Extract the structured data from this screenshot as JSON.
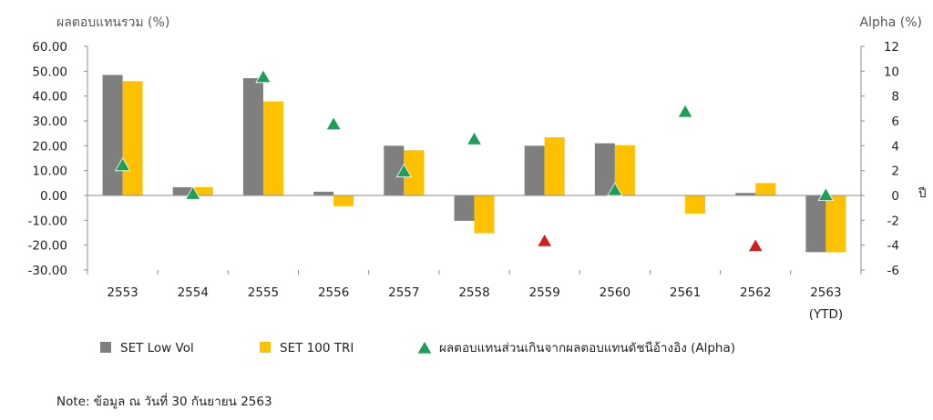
{
  "chart_data": {
    "type": "bar",
    "y_left_title": "ผลตอบแทนรวม (%)",
    "y_right_title": "Alpha (%)",
    "side_label": "ปี",
    "categories": [
      "2553",
      "2554",
      "2555",
      "2556",
      "2557",
      "2558",
      "2559",
      "2560",
      "2561",
      "2562",
      "2563"
    ],
    "category_sublabels": [
      "",
      "",
      "",
      "",
      "",
      "",
      "",
      "",
      "",
      "",
      "(YTD)"
    ],
    "y_left": {
      "min": -30,
      "max": 60,
      "ticks": [
        "60.00",
        "50.00",
        "40.00",
        "30.00",
        "20.00",
        "10.00",
        "0.00",
        "-10.00",
        "-20.00",
        "-30.00"
      ]
    },
    "y_right": {
      "min": -6,
      "max": 12,
      "ticks": [
        "12",
        "10",
        "8",
        "6",
        "4",
        "2",
        "0",
        "-2",
        "-4",
        "-6"
      ]
    },
    "series": [
      {
        "name": "SET Low Vol",
        "axis": "left",
        "color": "#7f7f7f",
        "values": [
          48.5,
          3.3,
          47.2,
          1.5,
          20.0,
          -10.2,
          20.0,
          21.0,
          0.0,
          1.0,
          -22.8
        ]
      },
      {
        "name": "SET 100 TRI",
        "axis": "left",
        "color": "#ffc000",
        "values": [
          46.0,
          3.3,
          37.8,
          -4.3,
          18.2,
          -15.2,
          23.4,
          20.2,
          -7.3,
          5.0,
          -22.8
        ]
      },
      {
        "name": "ผลตอบแทนส่วนเกินจากผลตอบแทนดัชนีอ้างอิง (Alpha)",
        "axis": "right",
        "type": "marker",
        "color_positive": "#1e9e5a",
        "color_negative": "#d0201e",
        "values": [
          2.5,
          0.2,
          9.6,
          5.8,
          2.0,
          4.6,
          -3.6,
          0.5,
          6.8,
          -4.0,
          0.1
        ]
      }
    ]
  },
  "note": "Note: ข้อมูล ณ วันที่ 30 กันยายน 2563"
}
